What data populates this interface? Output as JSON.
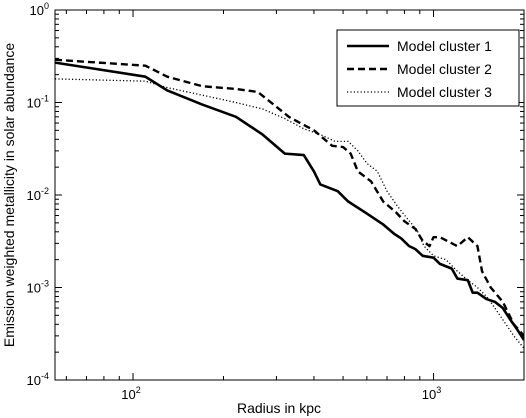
{
  "chart_data": {
    "type": "line",
    "xlabel": "Radius in kpc",
    "ylabel": "Emission weighted metallicity in solar abundance",
    "xscale": "log",
    "yscale": "log",
    "xlim": [
      55,
      2000
    ],
    "ylim": [
      0.0001,
      1
    ],
    "grid": false,
    "legend_position": "top-right",
    "x_ticks": [
      {
        "value": 100,
        "base": "10",
        "exp": "2"
      },
      {
        "value": 1000,
        "base": "10",
        "exp": "3"
      }
    ],
    "y_ticks": [
      {
        "value": 1,
        "base": "10",
        "exp": "0"
      },
      {
        "value": 0.1,
        "base": "10",
        "exp": "-1"
      },
      {
        "value": 0.01,
        "base": "10",
        "exp": "-2"
      },
      {
        "value": 0.001,
        "base": "10",
        "exp": "-3"
      },
      {
        "value": 0.0001,
        "base": "10",
        "exp": "-4"
      }
    ],
    "series": [
      {
        "name": "Model cluster 1",
        "style": "solid",
        "points": [
          [
            55,
            0.27
          ],
          [
            110,
            0.19
          ],
          [
            130,
            0.135
          ],
          [
            170,
            0.095
          ],
          [
            220,
            0.07
          ],
          [
            270,
            0.045
          ],
          [
            320,
            0.028
          ],
          [
            370,
            0.027
          ],
          [
            400,
            0.018
          ],
          [
            420,
            0.013
          ],
          [
            480,
            0.011
          ],
          [
            520,
            0.0085
          ],
          [
            600,
            0.0063
          ],
          [
            680,
            0.0048
          ],
          [
            740,
            0.0038
          ],
          [
            780,
            0.0034
          ],
          [
            830,
            0.0028
          ],
          [
            870,
            0.0026
          ],
          [
            920,
            0.0022
          ],
          [
            1000,
            0.0021
          ],
          [
            1050,
            0.0018
          ],
          [
            1150,
            0.0016
          ],
          [
            1200,
            0.00125
          ],
          [
            1300,
            0.0012
          ],
          [
            1350,
            0.00088
          ],
          [
            1400,
            0.00088
          ],
          [
            1500,
            0.00075
          ],
          [
            1600,
            0.0007
          ],
          [
            1700,
            0.0006
          ],
          [
            1800,
            0.00045
          ],
          [
            1900,
            0.00035
          ],
          [
            2000,
            0.00027
          ]
        ]
      },
      {
        "name": "Model cluster 2",
        "style": "dashed",
        "points": [
          [
            55,
            0.29
          ],
          [
            110,
            0.25
          ],
          [
            130,
            0.19
          ],
          [
            170,
            0.15
          ],
          [
            220,
            0.14
          ],
          [
            260,
            0.13
          ],
          [
            300,
            0.09
          ],
          [
            330,
            0.07
          ],
          [
            360,
            0.06
          ],
          [
            400,
            0.05
          ],
          [
            460,
            0.034
          ],
          [
            500,
            0.033
          ],
          [
            530,
            0.028
          ],
          [
            560,
            0.018
          ],
          [
            620,
            0.014
          ],
          [
            680,
            0.0085
          ],
          [
            750,
            0.0065
          ],
          [
            800,
            0.0052
          ],
          [
            870,
            0.0043
          ],
          [
            920,
            0.0032
          ],
          [
            970,
            0.0028
          ],
          [
            1000,
            0.0035
          ],
          [
            1050,
            0.0035
          ],
          [
            1200,
            0.0028
          ],
          [
            1300,
            0.0035
          ],
          [
            1400,
            0.0028
          ],
          [
            1450,
            0.0015
          ],
          [
            1550,
            0.001
          ],
          [
            1700,
            0.0007
          ],
          [
            1850,
            0.0004
          ],
          [
            2000,
            0.0003
          ]
        ]
      },
      {
        "name": "Model cluster 3",
        "style": "dotted",
        "points": [
          [
            55,
            0.18
          ],
          [
            110,
            0.17
          ],
          [
            130,
            0.145
          ],
          [
            170,
            0.12
          ],
          [
            220,
            0.1
          ],
          [
            270,
            0.085
          ],
          [
            320,
            0.067
          ],
          [
            370,
            0.052
          ],
          [
            420,
            0.045
          ],
          [
            470,
            0.038
          ],
          [
            520,
            0.038
          ],
          [
            560,
            0.03
          ],
          [
            600,
            0.022
          ],
          [
            650,
            0.018
          ],
          [
            700,
            0.011
          ],
          [
            760,
            0.0075
          ],
          [
            820,
            0.0055
          ],
          [
            880,
            0.0042
          ],
          [
            930,
            0.0028
          ],
          [
            1000,
            0.0022
          ],
          [
            1100,
            0.002
          ],
          [
            1200,
            0.0015
          ],
          [
            1300,
            0.0012
          ],
          [
            1400,
            0.001
          ],
          [
            1500,
            0.0008
          ],
          [
            1600,
            0.0006
          ],
          [
            1700,
            0.00045
          ],
          [
            1850,
            0.0003
          ],
          [
            2000,
            0.00022
          ]
        ]
      }
    ]
  }
}
